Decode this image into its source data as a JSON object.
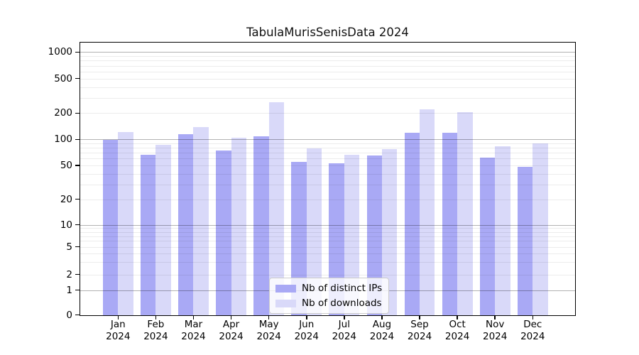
{
  "chart_data": {
    "type": "bar",
    "title": "TabulaMurisSenisData 2024",
    "categories": [
      "Jan 2024",
      "Feb 2024",
      "Mar 2024",
      "Apr 2024",
      "May 2024",
      "Jun 2024",
      "Jul 2024",
      "Aug 2024",
      "Sep 2024",
      "Oct 2024",
      "Nov 2024",
      "Dec 2024"
    ],
    "series": [
      {
        "name": "Nb of distinct IPs",
        "color": "#a9a9f5",
        "values": [
          98,
          66,
          114,
          74,
          108,
          55,
          53,
          65,
          120,
          120,
          62,
          48
        ]
      },
      {
        "name": "Nb of downloads",
        "color": "#d9d9f9",
        "values": [
          122,
          86,
          139,
          104,
          268,
          78,
          67,
          77,
          220,
          206,
          83,
          90
        ]
      }
    ],
    "xlabel": "",
    "ylabel": "",
    "yscale": "symlog",
    "ylim": [
      0,
      1300
    ],
    "yticks": [
      0,
      1,
      2,
      5,
      10,
      20,
      50,
      100,
      200,
      500,
      1000
    ],
    "grid": true,
    "legend_position": "lower center"
  }
}
